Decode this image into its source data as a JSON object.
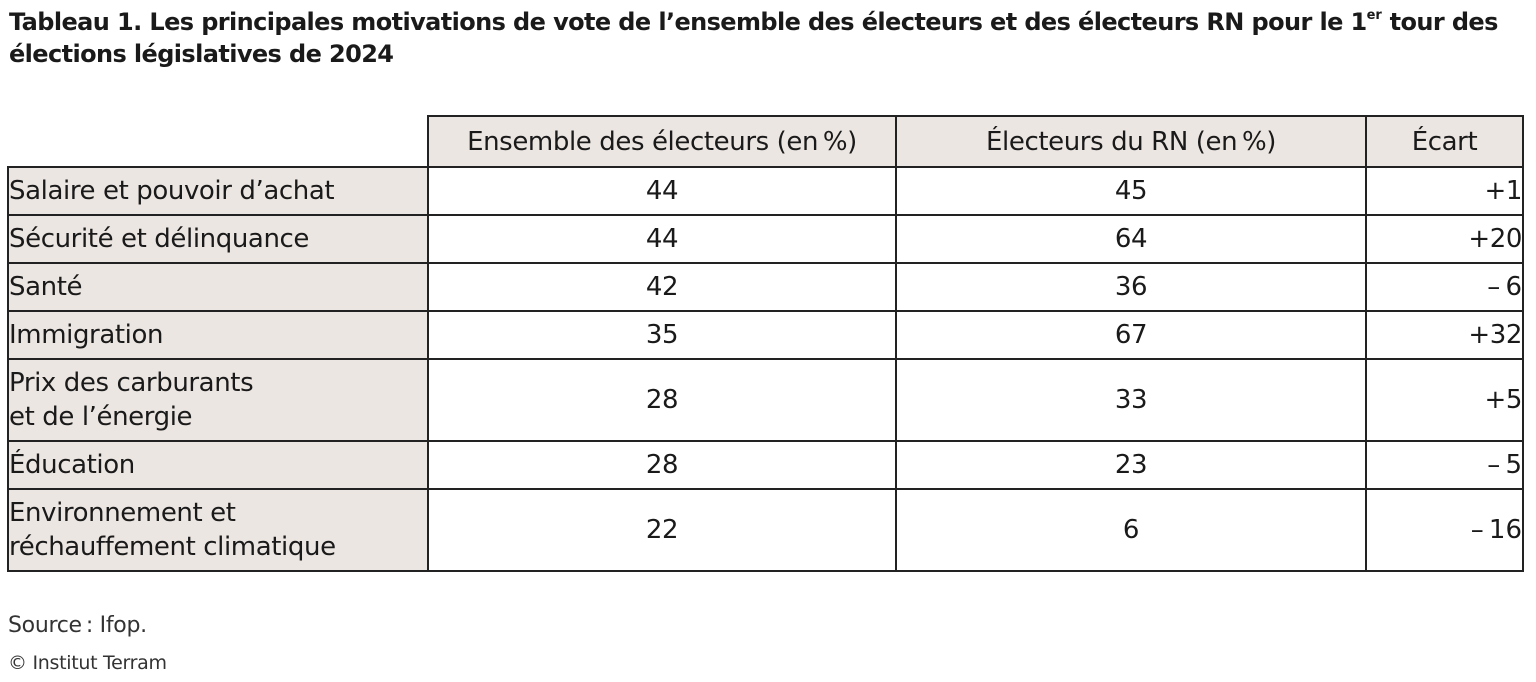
{
  "title": {
    "lead": "Tableau 1.",
    "text_a": "Les principales motivations de vote de l’ensemble des électeurs et des électeurs RN pour le 1",
    "sup": "er",
    "text_b": "tour des élections législatives de 2024"
  },
  "table": {
    "headers": [
      "",
      "Ensemble des électeurs (en %)",
      "Électeurs du RN (en %)",
      "Écart"
    ],
    "rows": [
      {
        "label": "Salaire et pouvoir d’achat",
        "all": "44",
        "rn": "45",
        "gap": "+1"
      },
      {
        "label": "Sécurité et délinquance",
        "all": "44",
        "rn": "64",
        "gap": "+20"
      },
      {
        "label": "Santé",
        "all": "42",
        "rn": "36",
        "gap": "– 6"
      },
      {
        "label": "Immigration",
        "all": "35",
        "rn": "67",
        "gap": "+32"
      },
      {
        "label_l1": "Prix des carburants",
        "label_l2": "et de l’énergie",
        "all": "28",
        "rn": "33",
        "gap": "+5"
      },
      {
        "label": "Éducation",
        "all": "28",
        "rn": "23",
        "gap": "– 5"
      },
      {
        "label_l1": "Environnement et",
        "label_l2": "réchauffement climatique",
        "all": "22",
        "rn": "6",
        "gap": "– 16"
      }
    ]
  },
  "source": "Source : Ifop.",
  "copyright": "© Institut Terram",
  "colors": {
    "label_bg": "#ece6e2",
    "border": "#222222"
  }
}
